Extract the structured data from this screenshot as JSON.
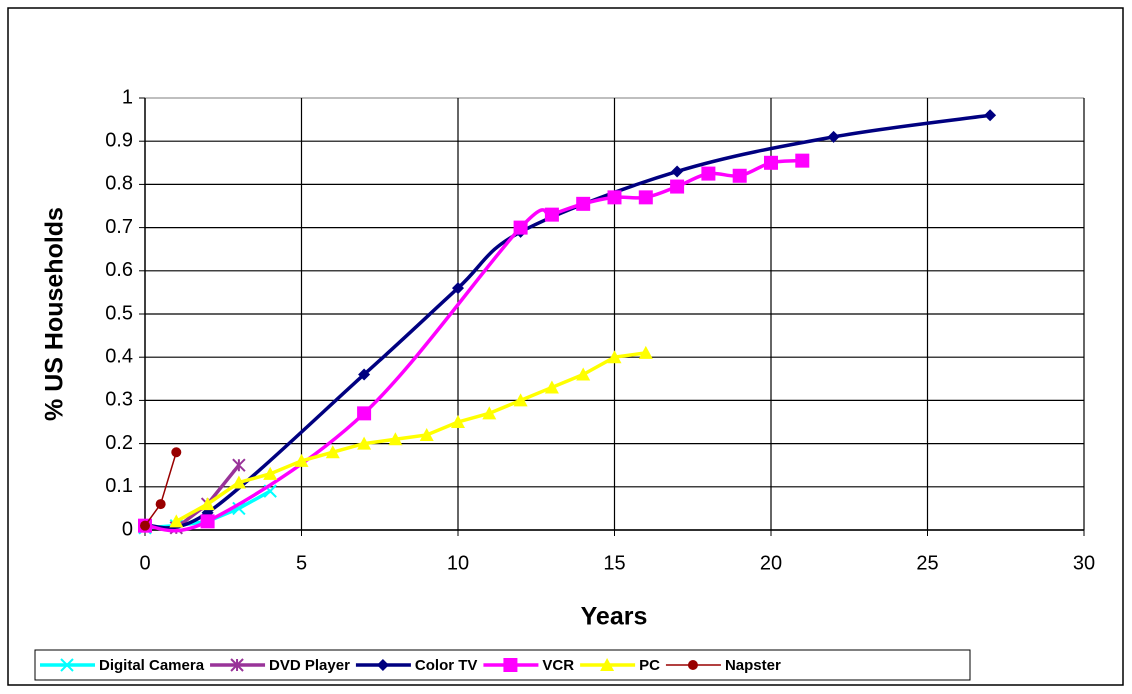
{
  "chart_data": {
    "type": "line",
    "x_label": "Years",
    "y_label": "% US Households",
    "xlim": [
      0,
      30
    ],
    "xticks": [
      0,
      5,
      10,
      15,
      20,
      25,
      30
    ],
    "ylim": [
      0,
      1
    ],
    "yticks": [
      0,
      0.1,
      0.2,
      0.3,
      0.4,
      0.5,
      0.6,
      0.7,
      0.8,
      0.9,
      1
    ],
    "grid": true,
    "legend": "bottom",
    "series": [
      {
        "name": "Digital Camera",
        "color": "#00FFFF",
        "marker": "x",
        "smooth": false,
        "x": [
          0,
          1,
          2,
          3,
          4
        ],
        "values": [
          0.005,
          0.01,
          0.02,
          0.05,
          0.09
        ]
      },
      {
        "name": "DVD Player",
        "color": "#993399",
        "marker": "asterisk",
        "smooth": false,
        "x": [
          1,
          2,
          3
        ],
        "values": [
          0.005,
          0.06,
          0.15
        ]
      },
      {
        "name": "Color TV",
        "color": "#000080",
        "marker": "diamond",
        "smooth": true,
        "x": [
          0,
          2,
          7,
          10,
          12,
          17,
          22,
          27
        ],
        "values": [
          0.01,
          0.04,
          0.36,
          0.56,
          0.69,
          0.83,
          0.91,
          0.96
        ]
      },
      {
        "name": "VCR",
        "color": "#FF00FF",
        "marker": "square",
        "smooth": true,
        "x": [
          0,
          2,
          7,
          12,
          13,
          14,
          15,
          16,
          17,
          18,
          19,
          20,
          21
        ],
        "values": [
          0.01,
          0.02,
          0.27,
          0.7,
          0.73,
          0.755,
          0.77,
          0.77,
          0.795,
          0.825,
          0.82,
          0.85,
          0.855
        ]
      },
      {
        "name": "PC",
        "color": "#FFFF00",
        "marker": "triangle",
        "smooth": false,
        "x": [
          1,
          2,
          3,
          4,
          5,
          6,
          7,
          8,
          9,
          10,
          11,
          12,
          13,
          14,
          15,
          16
        ],
        "values": [
          0.02,
          0.06,
          0.11,
          0.13,
          0.16,
          0.18,
          0.2,
          0.21,
          0.22,
          0.25,
          0.27,
          0.3,
          0.33,
          0.36,
          0.4,
          0.41
        ]
      },
      {
        "name": "Napster",
        "color": "#990000",
        "marker": "circle",
        "smooth": false,
        "x": [
          0,
          0.5,
          1
        ],
        "values": [
          0.01,
          0.06,
          0.18
        ]
      }
    ]
  }
}
